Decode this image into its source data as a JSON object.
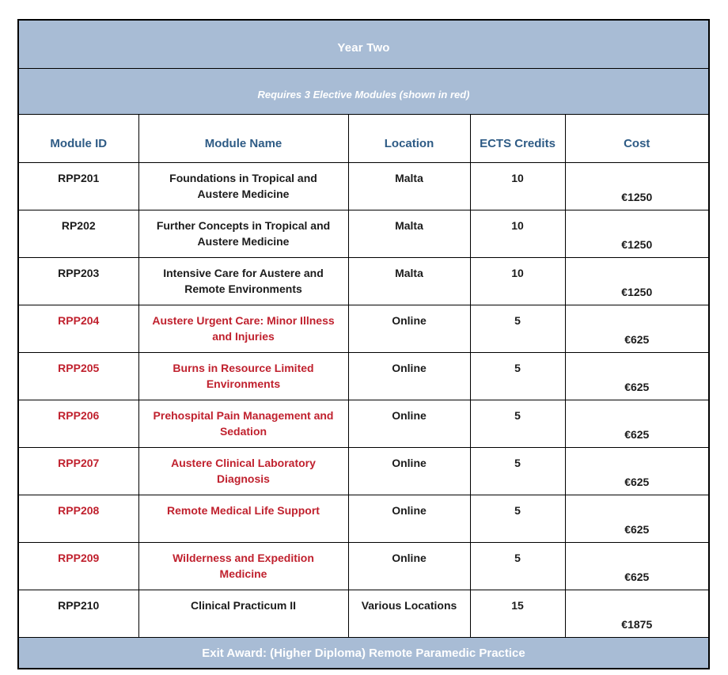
{
  "page": {
    "title": "Year Two",
    "subtitle": "Requires 3 Elective Modules (shown in red)",
    "footer": "Exit Award: (Higher Diploma) Remote Paramedic Practice"
  },
  "colors": {
    "header_bg": "#a8bcd5",
    "header_text": "#ffffff",
    "column_header_text": "#2e5b85",
    "elective_text": "#c0212e",
    "body_text": "#1b1b1b",
    "border": "#000000"
  },
  "table": {
    "columns": [
      "Module ID",
      "Module Name",
      "Location",
      "ECTS Credits",
      "Cost"
    ],
    "rows": [
      {
        "id": "RPP201",
        "name": "Foundations in Tropical and\nAustere Medicine",
        "location": "Malta",
        "credits": "10",
        "cost": "€1250",
        "elective": false
      },
      {
        "id": "RP202",
        "name": "Further Concepts in Tropical and\nAustere Medicine",
        "location": "Malta",
        "credits": "10",
        "cost": "€1250",
        "elective": false
      },
      {
        "id": "RPP203",
        "name": "Intensive Care for Austere and\nRemote Environments",
        "location": "Malta",
        "credits": "10",
        "cost": "€1250",
        "elective": false
      },
      {
        "id": "RPP204",
        "name": "Austere Urgent Care: Minor Illness\nand Injuries",
        "location": "Online",
        "credits": "5",
        "cost": "€625",
        "elective": true
      },
      {
        "id": "RPP205",
        "name": "Burns in Resource Limited\nEnvironments",
        "location": "Online",
        "credits": "5",
        "cost": "€625",
        "elective": true
      },
      {
        "id": "RPP206",
        "name": "Prehospital Pain Management and\nSedation",
        "location": "Online",
        "credits": "5",
        "cost": "€625",
        "elective": true
      },
      {
        "id": "RPP207",
        "name": "Austere Clinical Laboratory\nDiagnosis",
        "location": "Online",
        "credits": "5",
        "cost": "€625",
        "elective": true
      },
      {
        "id": "RPP208",
        "name": "Remote Medical Life Support",
        "location": "Online",
        "credits": "5",
        "cost": "€625",
        "elective": true
      },
      {
        "id": "RPP209",
        "name": "Wilderness and Expedition\nMedicine",
        "location": "Online",
        "credits": "5",
        "cost": "€625",
        "elective": true
      },
      {
        "id": "RPP210",
        "name": "Clinical Practicum II",
        "location": "Various Locations",
        "credits": "15",
        "cost": "€1875",
        "elective": false
      }
    ]
  }
}
